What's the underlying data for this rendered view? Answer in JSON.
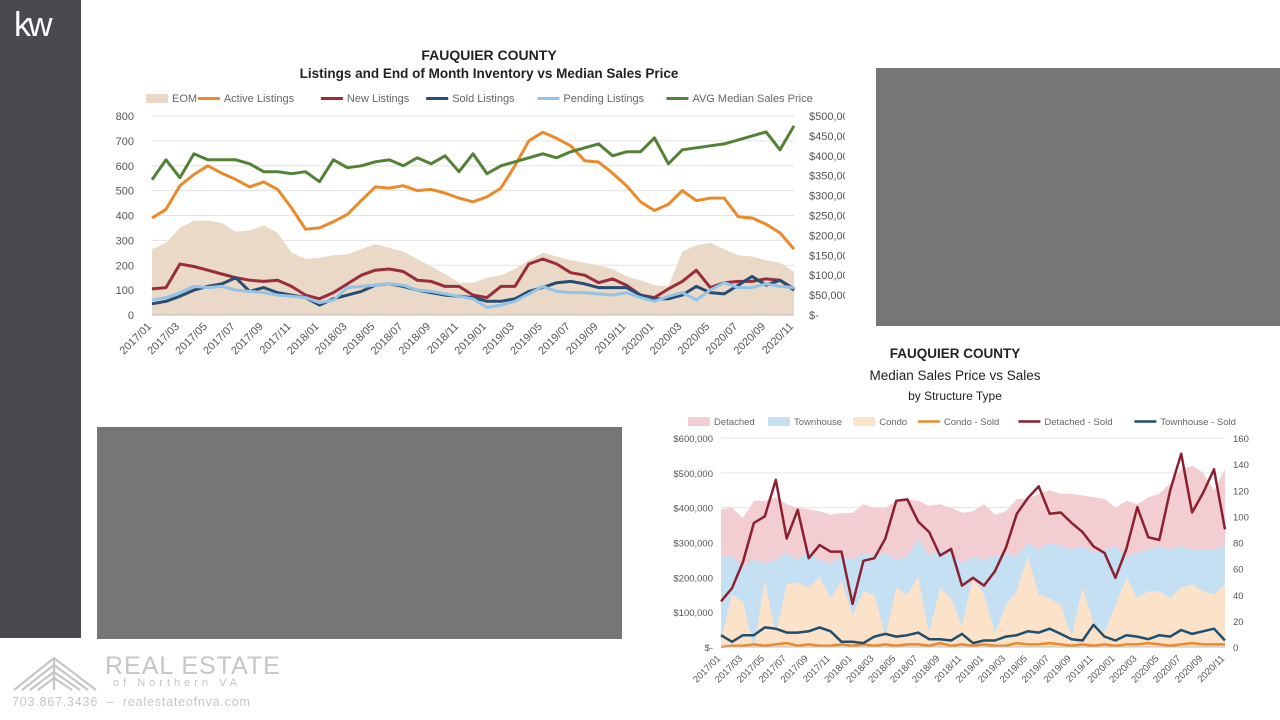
{
  "branding": {
    "logo_text": "kw",
    "company_line1": "REAL ESTATE",
    "company_line2": "of Northern VA",
    "phone": "703.867.3436",
    "separator": "–",
    "website": "realestateofnva.com"
  },
  "colors": {
    "sidebar": "#4a4950",
    "placeholder": "#767676",
    "eom": "#ead9c6",
    "active": "#ec8a2a",
    "new": "#9b2c3a",
    "sold": "#264d73",
    "pending": "#93c3e6",
    "avg_median": "#538135",
    "detached_area": "#f2cdd2",
    "townhouse_area": "#c6e0f3",
    "condo_area": "#fbe2c9",
    "condo_sold": "#ec8a2a",
    "detached_sold": "#8b2130",
    "townhouse_sold": "#1f4e6e"
  },
  "chart_data": [
    {
      "type": "line",
      "title": "FAUQUIER COUNTY",
      "subtitle": "Listings and End of Month Inventory vs Median Sales Price",
      "x": [
        "2017/01",
        "2017/02",
        "2017/03",
        "2017/04",
        "2017/05",
        "2017/06",
        "2017/07",
        "2017/08",
        "2017/09",
        "2017/10",
        "2017/11",
        "2017/12",
        "2018/01",
        "2018/02",
        "2018/03",
        "2018/04",
        "2018/05",
        "2018/06",
        "2018/07",
        "2018/08",
        "2018/09",
        "2018/10",
        "2018/11",
        "2018/12",
        "2019/01",
        "2019/02",
        "2019/03",
        "2019/04",
        "2019/05",
        "2019/06",
        "2019/07",
        "2019/08",
        "2019/09",
        "2019/10",
        "2019/11",
        "2019/12",
        "2020/01",
        "2020/02",
        "2020/03",
        "2020/04",
        "2020/05",
        "2020/06",
        "2020/07",
        "2020/08",
        "2020/09",
        "2020/10",
        "2020/11"
      ],
      "x_tick_labels": [
        "2017/01",
        "2017/03",
        "2017/05",
        "2017/07",
        "2017/09",
        "2017/11",
        "2018/01",
        "2018/03",
        "2018/05",
        "2018/07",
        "2018/09",
        "2018/11",
        "2019/01",
        "2019/03",
        "2019/05",
        "2019/07",
        "2019/09",
        "2019/11",
        "2020/01",
        "2020/03",
        "2020/05",
        "2020/07",
        "2020/09",
        "2020/11"
      ],
      "y_left_ticks": [
        "0",
        "100",
        "200",
        "300",
        "400",
        "500",
        "600",
        "700",
        "800"
      ],
      "y_right_ticks": [
        "$-",
        "$50,000",
        "$100,000",
        "$150,000",
        "$200,000",
        "$250,000",
        "$300,000",
        "$350,000",
        "$400,000",
        "$450,000",
        "$500,000"
      ],
      "ylim_left": [
        0,
        800
      ],
      "ylim_right": [
        0,
        500000
      ],
      "legend_position": "top",
      "series": [
        {
          "name": "EOM",
          "kind": "area",
          "axis": "left",
          "color": "#ead9c6",
          "values": [
            265,
            290,
            350,
            380,
            380,
            370,
            335,
            340,
            360,
            330,
            250,
            225,
            230,
            240,
            245,
            265,
            285,
            270,
            255,
            225,
            195,
            165,
            130,
            130,
            150,
            160,
            185,
            220,
            250,
            235,
            220,
            210,
            200,
            185,
            155,
            140,
            120,
            115,
            255,
            280,
            290,
            265,
            240,
            235,
            220,
            210,
            175
          ]
        },
        {
          "name": "Active Listings",
          "kind": "line",
          "axis": "left",
          "color": "#ec8a2a",
          "values": [
            390,
            425,
            520,
            565,
            600,
            570,
            545,
            515,
            535,
            505,
            430,
            345,
            350,
            375,
            405,
            460,
            515,
            510,
            520,
            500,
            505,
            490,
            470,
            455,
            475,
            510,
            600,
            700,
            735,
            710,
            680,
            620,
            615,
            570,
            520,
            455,
            420,
            445,
            500,
            460,
            470,
            470,
            395,
            390,
            365,
            330,
            265
          ]
        },
        {
          "name": "New Listings",
          "kind": "line",
          "axis": "left",
          "color": "#9b2c3a",
          "values": [
            105,
            110,
            205,
            195,
            180,
            165,
            150,
            140,
            135,
            140,
            115,
            80,
            65,
            90,
            125,
            160,
            180,
            185,
            175,
            140,
            135,
            115,
            115,
            80,
            70,
            115,
            115,
            205,
            225,
            205,
            170,
            160,
            130,
            145,
            120,
            80,
            70,
            105,
            135,
            180,
            110,
            130,
            135,
            135,
            145,
            140,
            105
          ]
        },
        {
          "name": "Sold Listings",
          "kind": "line",
          "axis": "left",
          "color": "#264d73",
          "values": [
            45,
            55,
            75,
            100,
            115,
            125,
            150,
            95,
            110,
            90,
            80,
            70,
            40,
            65,
            80,
            95,
            120,
            125,
            115,
            100,
            90,
            80,
            75,
            70,
            55,
            55,
            65,
            95,
            110,
            130,
            135,
            125,
            110,
            110,
            110,
            80,
            65,
            65,
            80,
            115,
            90,
            85,
            120,
            155,
            120,
            140,
            100
          ]
        },
        {
          "name": "Pending Listings",
          "kind": "line",
          "axis": "left",
          "color": "#93c3e6",
          "values": [
            60,
            70,
            90,
            115,
            110,
            115,
            100,
            95,
            90,
            80,
            75,
            70,
            50,
            60,
            110,
            115,
            120,
            125,
            120,
            100,
            95,
            85,
            75,
            65,
            30,
            40,
            55,
            85,
            115,
            95,
            90,
            90,
            85,
            80,
            90,
            70,
            55,
            75,
            90,
            60,
            100,
            130,
            110,
            110,
            125,
            115,
            110
          ]
        },
        {
          "name": "AVG Median Sales Price",
          "kind": "line",
          "axis": "right",
          "color": "#538135",
          "values": [
            340000,
            390000,
            345000,
            405000,
            390000,
            390000,
            390000,
            380000,
            360000,
            360000,
            355000,
            360000,
            335000,
            390000,
            370000,
            375000,
            385000,
            390000,
            375000,
            395000,
            380000,
            400000,
            360000,
            405000,
            355000,
            375000,
            385000,
            395000,
            405000,
            395000,
            410000,
            420000,
            430000,
            400000,
            410000,
            410000,
            445000,
            380000,
            415000,
            420000,
            425000,
            430000,
            440000,
            450000,
            460000,
            415000,
            475000
          ]
        }
      ]
    },
    {
      "type": "area",
      "title": "FAUQUIER COUNTY",
      "subtitle": "Median Sales Price vs Sales",
      "subtitle2": "by Structure Type",
      "x": [
        "2017/01",
        "2017/02",
        "2017/03",
        "2017/04",
        "2017/05",
        "2017/06",
        "2017/07",
        "2017/08",
        "2017/09",
        "2017/10",
        "2017/11",
        "2017/12",
        "2018/01",
        "2018/02",
        "2018/03",
        "2018/04",
        "2018/05",
        "2018/06",
        "2018/07",
        "2018/08",
        "2018/09",
        "2018/10",
        "2018/11",
        "2018/12",
        "2019/01",
        "2019/02",
        "2019/03",
        "2019/04",
        "2019/05",
        "2019/06",
        "2019/07",
        "2019/08",
        "2019/09",
        "2019/10",
        "2019/11",
        "2019/12",
        "2020/01",
        "2020/02",
        "2020/03",
        "2020/04",
        "2020/05",
        "2020/06",
        "2020/07",
        "2020/08",
        "2020/09",
        "2020/10",
        "2020/11"
      ],
      "x_tick_labels": [
        "2017/01",
        "2017/03",
        "2017/05",
        "2017/07",
        "2017/09",
        "2017/11",
        "2018/01",
        "2018/03",
        "2018/05",
        "2018/07",
        "2018/09",
        "2018/11",
        "2019/01",
        "2019/03",
        "2019/05",
        "2019/07",
        "2019/09",
        "2019/11",
        "2020/01",
        "2020/03",
        "2020/05",
        "2020/07",
        "2020/09",
        "2020/11"
      ],
      "y_left_ticks": [
        "$-",
        "$100,000",
        "$200,000",
        "$300,000",
        "$400,000",
        "$500,000",
        "$600,000"
      ],
      "y_right_ticks": [
        "0",
        "20",
        "40",
        "60",
        "80",
        "100",
        "120",
        "140",
        "160"
      ],
      "ylim_left": [
        0,
        600000
      ],
      "ylim_right": [
        0,
        160
      ],
      "legend_position": "top",
      "series": [
        {
          "name": "Detached",
          "kind": "area",
          "axis": "left",
          "color": "#f2cdd2",
          "values": [
            395000,
            400000,
            370000,
            420000,
            420000,
            430000,
            410000,
            400000,
            395000,
            390000,
            380000,
            385000,
            385000,
            410000,
            400000,
            400000,
            420000,
            425000,
            420000,
            405000,
            410000,
            400000,
            385000,
            390000,
            410000,
            380000,
            390000,
            425000,
            425000,
            440000,
            450000,
            440000,
            440000,
            435000,
            430000,
            425000,
            400000,
            420000,
            410000,
            430000,
            440000,
            470000,
            510000,
            520000,
            500000,
            450000,
            510000
          ]
        },
        {
          "name": "Townhouse",
          "kind": "area",
          "axis": "left",
          "color": "#c6e0f3",
          "values": [
            260000,
            260000,
            230000,
            250000,
            240000,
            250000,
            270000,
            250000,
            280000,
            250000,
            240000,
            260000,
            250000,
            270000,
            260000,
            270000,
            250000,
            260000,
            310000,
            260000,
            280000,
            270000,
            240000,
            260000,
            250000,
            260000,
            270000,
            260000,
            300000,
            280000,
            300000,
            290000,
            280000,
            290000,
            270000,
            280000,
            290000,
            260000,
            270000,
            280000,
            290000,
            280000,
            290000,
            280000,
            280000,
            280000,
            290000
          ]
        },
        {
          "name": "Condo",
          "kind": "area",
          "axis": "left",
          "color": "#fbe2c9",
          "values": [
            20000,
            150000,
            130000,
            0,
            190000,
            40000,
            180000,
            185000,
            170000,
            200000,
            140000,
            190000,
            90000,
            160000,
            150000,
            30000,
            170000,
            150000,
            200000,
            40000,
            170000,
            140000,
            60000,
            200000,
            150000,
            40000,
            120000,
            160000,
            260000,
            150000,
            140000,
            120000,
            30000,
            170000,
            70000,
            40000,
            120000,
            200000,
            140000,
            160000,
            160000,
            140000,
            170000,
            180000,
            160000,
            150000,
            180000
          ]
        },
        {
          "name": "Condo - Sold",
          "kind": "line",
          "axis": "right",
          "color": "#ec8a2a",
          "values": [
            0,
            1,
            1,
            2,
            1,
            2,
            3,
            1,
            2,
            1,
            1,
            2,
            1,
            2,
            1,
            2,
            1,
            2,
            2,
            1,
            3,
            1,
            2,
            1,
            2,
            1,
            1,
            3,
            2,
            2,
            3,
            2,
            1,
            2,
            1,
            2,
            1,
            2,
            2,
            3,
            2,
            1,
            2,
            3,
            2,
            2,
            2
          ]
        },
        {
          "name": "Detached - Sold",
          "kind": "line",
          "axis": "right",
          "color": "#8b2130",
          "values": [
            35,
            45,
            65,
            95,
            100,
            128,
            83,
            105,
            68,
            78,
            73,
            73,
            33,
            66,
            68,
            83,
            112,
            113,
            96,
            88,
            70,
            75,
            47,
            53,
            47,
            58,
            76,
            102,
            114,
            123,
            102,
            103,
            95,
            88,
            77,
            72,
            53,
            75,
            107,
            84,
            82,
            120,
            148,
            103,
            118,
            136,
            90
          ]
        },
        {
          "name": "Townhouse - Sold",
          "kind": "line",
          "axis": "right",
          "color": "#1f4e6e",
          "values": [
            9,
            4,
            9,
            9,
            15,
            14,
            11,
            11,
            12,
            15,
            12,
            4,
            4,
            3,
            8,
            10,
            8,
            9,
            11,
            6,
            6,
            5,
            10,
            3,
            5,
            5,
            8,
            9,
            12,
            11,
            14,
            10,
            6,
            5,
            17,
            8,
            5,
            9,
            8,
            6,
            9,
            8,
            13,
            10,
            12,
            14,
            5
          ]
        }
      ]
    }
  ]
}
